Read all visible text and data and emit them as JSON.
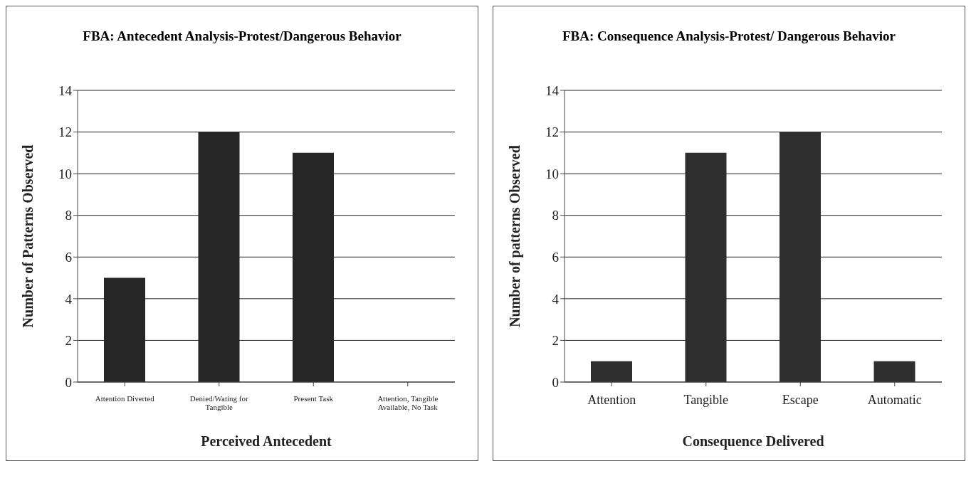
{
  "chart_data": [
    {
      "type": "bar",
      "title": "FBA: Antecedent Analysis-Protest/Dangerous Behavior",
      "xlabel": "Perceived Antecedent",
      "ylabel": "Number of Patterns Observed",
      "categories": [
        "Attention Diverted",
        "Denied/Wating for Tangible",
        "Present Task",
        "Attention, Tangible Available, No Task"
      ],
      "values": [
        5,
        12,
        11,
        0
      ],
      "color": "#262626",
      "ylim": [
        0,
        14
      ],
      "yticks": [
        0,
        2,
        4,
        6,
        8,
        10,
        12,
        14
      ],
      "grid": "y"
    },
    {
      "type": "bar",
      "title": "FBA: Consequence Analysis-Protest/ Dangerous Behavior",
      "xlabel": "Consequence Delivered",
      "ylabel": "Number of patterns Observed",
      "categories": [
        "Attention",
        "Tangible",
        "Escape",
        "Automatic"
      ],
      "values": [
        1,
        11,
        12,
        1
      ],
      "color": "#2e2e2e",
      "ylim": [
        0,
        14
      ],
      "yticks": [
        0,
        2,
        4,
        6,
        8,
        10,
        12,
        14
      ],
      "grid": "y"
    }
  ]
}
